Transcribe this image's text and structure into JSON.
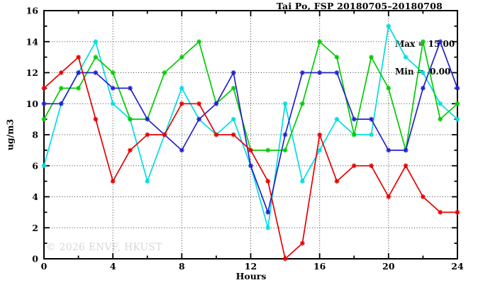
{
  "header": {
    "title": "Tai Po, FSP 20180705–20180708"
  },
  "stats": {
    "max_line": "Max = 15.00",
    "min_line": "Min =  0.00"
  },
  "watermark": {
    "text": "© 2026 ENVF, HKUST"
  },
  "chart_data": {
    "type": "line",
    "title": "Tai Po, FSP 20180705–20180708",
    "xlabel": "Hours",
    "ylabel": "ug/m3",
    "xlim": [
      0,
      24
    ],
    "ylim": [
      0,
      16
    ],
    "grid": true,
    "legend_position": "none",
    "stat_max": 15.0,
    "stat_min": 0.0,
    "x": [
      0,
      1,
      2,
      3,
      4,
      5,
      6,
      7,
      8,
      9,
      10,
      11,
      12,
      13,
      14,
      15,
      16,
      17,
      18,
      19,
      20,
      21,
      22,
      23,
      24
    ],
    "series": [
      {
        "name": "cyan",
        "color": "#00dde0",
        "values": [
          6,
          10,
          12,
          14,
          10,
          9,
          5,
          8,
          11,
          9,
          8,
          9,
          6,
          2,
          10,
          5,
          7,
          9,
          8,
          8,
          15,
          13,
          12,
          10,
          9
        ]
      },
      {
        "name": "green",
        "color": "#00cc00",
        "values": [
          9,
          11,
          11,
          13,
          12,
          9,
          9,
          12,
          13,
          14,
          10,
          11,
          7,
          7,
          7,
          10,
          14,
          13,
          8,
          13,
          11,
          7,
          14,
          9,
          10
        ]
      },
      {
        "name": "blue",
        "color": "#2222cc",
        "values": [
          10,
          10,
          12,
          12,
          11,
          11,
          9,
          8,
          7,
          9,
          10,
          12,
          6,
          3,
          8,
          12,
          12,
          12,
          9,
          9,
          7,
          7,
          11,
          14,
          11
        ]
      },
      {
        "name": "red",
        "color": "#e60000",
        "values": [
          11,
          12,
          13,
          9,
          5,
          7,
          8,
          8,
          10,
          10,
          8,
          8,
          7,
          5,
          0,
          1,
          8,
          5,
          6,
          6,
          4,
          6,
          4,
          3,
          3
        ]
      }
    ],
    "xticks_major": [
      0,
      4,
      8,
      12,
      16,
      20,
      24
    ],
    "xtick_labels": [
      "0",
      "4",
      "8",
      "12",
      "16",
      "20",
      "24"
    ],
    "xticks_minor": [
      2,
      6,
      10,
      14,
      18,
      22
    ],
    "yticks_major": [
      0,
      2,
      4,
      6,
      8,
      10,
      12,
      14,
      16
    ],
    "ytick_labels": [
      "0",
      "2",
      "4",
      "6",
      "8",
      "10",
      "12",
      "14",
      "16"
    ],
    "yticks_minor": [
      1,
      3,
      5,
      7,
      9,
      11,
      13,
      15
    ],
    "grid_x": [
      4,
      8,
      12,
      16,
      20
    ],
    "grid_y": [
      2,
      4,
      6,
      8,
      10,
      12,
      14
    ]
  }
}
